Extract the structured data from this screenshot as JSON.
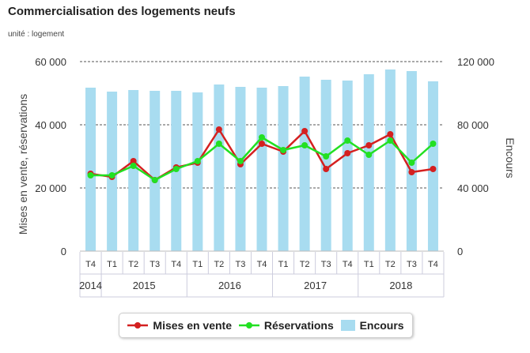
{
  "title": "Commercialisation des logements neufs",
  "subtitle": "unité : logement",
  "chart_data": {
    "type": "bar",
    "categories": [
      "T4",
      "T1",
      "T2",
      "T3",
      "T4",
      "T1",
      "T2",
      "T3",
      "T4",
      "T1",
      "T2",
      "T3",
      "T4",
      "T1",
      "T2",
      "T3",
      "T4"
    ],
    "year_groups": [
      {
        "label": "2014",
        "count": 1
      },
      {
        "label": "2015",
        "count": 4
      },
      {
        "label": "2016",
        "count": 4
      },
      {
        "label": "2017",
        "count": 4
      },
      {
        "label": "2018",
        "count": 4
      }
    ],
    "series": [
      {
        "name": "Mises en vente",
        "type": "line",
        "axis": "left",
        "color": "#d42020",
        "values": [
          24500,
          23500,
          28500,
          22500,
          26500,
          28000,
          38500,
          27500,
          34000,
          31500,
          38000,
          26000,
          31000,
          33500,
          37000,
          25000,
          26000
        ]
      },
      {
        "name": "Réservations",
        "type": "line",
        "axis": "left",
        "color": "#22e022",
        "values": [
          24000,
          24000,
          27000,
          22500,
          26000,
          28500,
          34000,
          28500,
          36000,
          32000,
          33500,
          30000,
          35000,
          30500,
          35000,
          28000,
          34000
        ]
      },
      {
        "name": "Encours",
        "type": "bar",
        "axis": "right",
        "color": "#a8dcf0",
        "values": [
          103500,
          101000,
          102000,
          101500,
          101500,
          100500,
          105500,
          104000,
          103500,
          104500,
          110500,
          108500,
          108000,
          112000,
          115000,
          114000,
          107500
        ]
      }
    ],
    "ylabel": "Mises en vente, réservations",
    "y2label": "Encours",
    "ylim": [
      0,
      60000
    ],
    "y2lim": [
      0,
      120000
    ],
    "yticks": [
      "0",
      "20 000",
      "40 000",
      "60 000"
    ],
    "y2ticks": [
      "0",
      "40 000",
      "80 000",
      "120 000"
    ],
    "legend_position": "bottom"
  }
}
